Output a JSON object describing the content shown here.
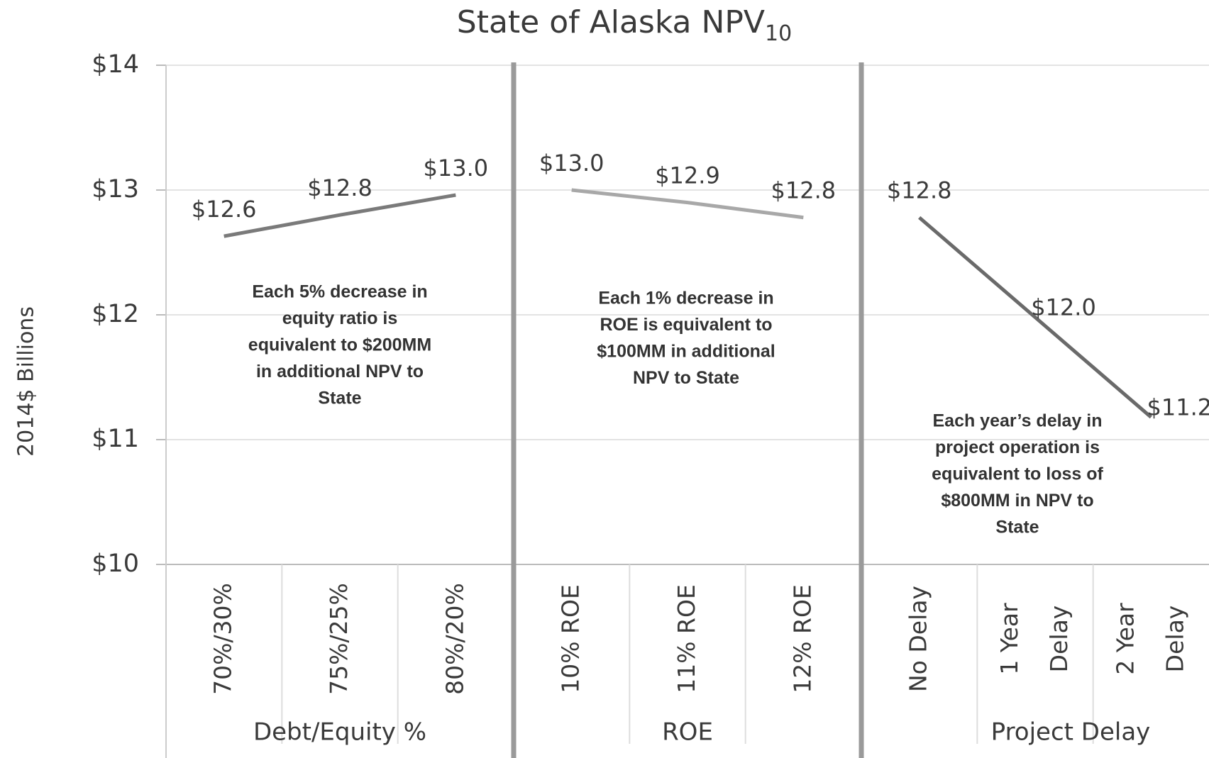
{
  "chart_data": {
    "type": "line",
    "title": "State of Alaska NPV",
    "title_subscript": "10",
    "y_label": "2014$ Billions",
    "ylim": [
      10,
      14
    ],
    "yticks": [
      {
        "value": 10,
        "label": "$10"
      },
      {
        "value": 11,
        "label": "$11"
      },
      {
        "value": 12,
        "label": "$12"
      },
      {
        "value": 13,
        "label": "$13"
      },
      {
        "value": 14,
        "label": "$14"
      }
    ],
    "grid": true,
    "series": [
      {
        "name": "Debt/Equity %",
        "color": "#7a7a7a",
        "categories": [
          "70%/30%",
          "75%/25%",
          "80%/20%"
        ],
        "values": [
          12.63,
          12.8,
          12.96
        ],
        "value_labels": [
          "$12.6",
          "$12.8",
          "$13.0"
        ],
        "annotation": [
          "Each 5% decrease in",
          "equity ratio is",
          "equivalent to $200MM",
          "in additional NPV to",
          "State"
        ]
      },
      {
        "name": "ROE",
        "color": "#a8a8a8",
        "categories": [
          "10% ROE",
          "11% ROE",
          "12% ROE"
        ],
        "values": [
          13.0,
          12.9,
          12.78
        ],
        "value_labels": [
          "$13.0",
          "$12.9",
          "$12.8"
        ],
        "annotation": [
          "Each 1% decrease in",
          "ROE is equivalent to",
          "$100MM in additional",
          "NPV to State"
        ]
      },
      {
        "name": "Project Delay",
        "color": "#6a6a6a",
        "categories": [
          "No Delay",
          "1 Year Delay",
          "2 Year Delay"
        ],
        "values": [
          12.78,
          11.98,
          11.18
        ],
        "value_labels": [
          "$12.8",
          "$12.0",
          "$11.2"
        ],
        "annotation": [
          "Each year’s delay in",
          "project operation is",
          "equivalent to loss of",
          "$800MM in NPV to",
          "State"
        ]
      }
    ]
  }
}
